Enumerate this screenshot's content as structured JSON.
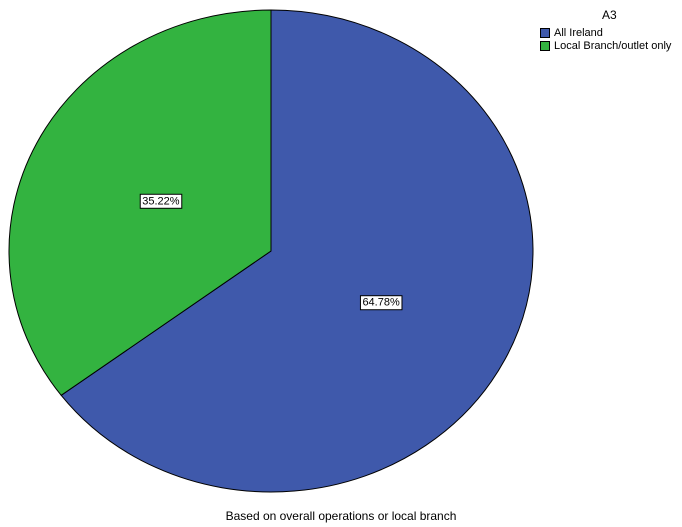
{
  "chart_data": {
    "type": "pie",
    "legend_title": "A3",
    "legend_position": "top-right",
    "caption": "Based on overall operations or local branch",
    "slices": [
      {
        "label": "All Ireland",
        "value": 64.78,
        "data_label": "64.78%",
        "color": "#3F59AB"
      },
      {
        "label": "Local Branch/outlet only",
        "value": 35.22,
        "data_label": "35.22%",
        "color": "#33B340"
      }
    ]
  }
}
